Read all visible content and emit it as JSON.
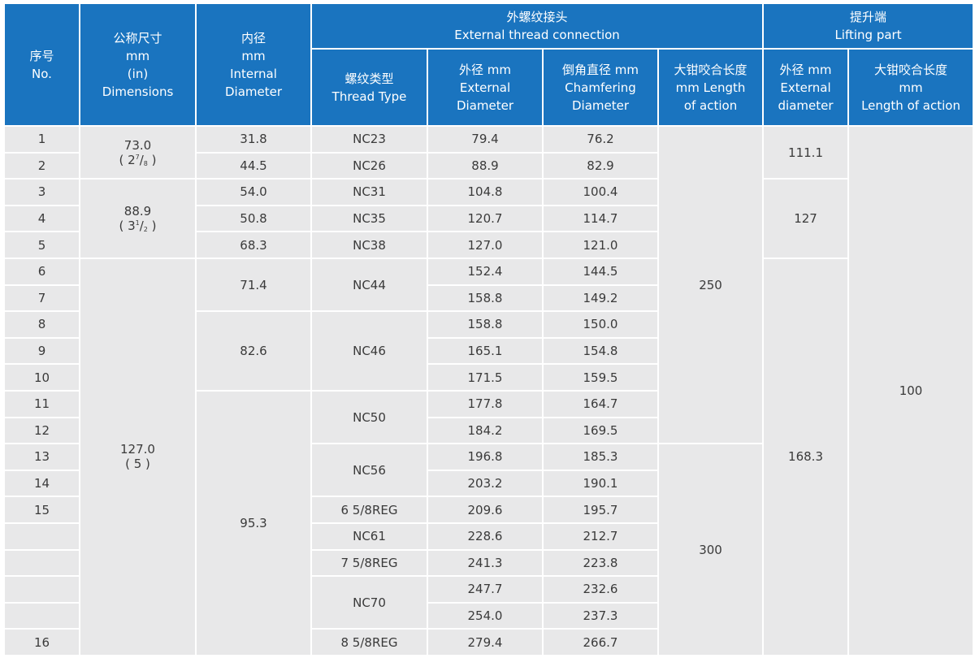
{
  "headers": {
    "no": [
      "序号",
      "No."
    ],
    "dimensions": [
      "公称尺寸",
      "mm",
      "(in)",
      "Dimensions"
    ],
    "internal": [
      "内径",
      "mm",
      "Internal",
      "Diameter"
    ],
    "ext_thread": [
      "外螺纹接头",
      "External thread connection"
    ],
    "lifting": [
      "提升端",
      "Lifting part"
    ],
    "thread_type": [
      "螺纹类型",
      "Thread Type"
    ],
    "ext_diameter": [
      "外径 mm",
      "External",
      "Diameter"
    ],
    "chamfer": [
      "倒角直径 mm",
      "Chamfering",
      "Diameter"
    ],
    "length_action": [
      "大钳咬合长度",
      "mm Length",
      "of action"
    ],
    "lift_ext_diameter": [
      "外径 mm",
      "External",
      "diameter"
    ],
    "lift_length": [
      "大钳咬合长度",
      "mm",
      "Length of action"
    ]
  },
  "rows": [
    {
      "no": "1",
      "ext": "79.4",
      "chamfer": "76.2"
    },
    {
      "no": "2",
      "ext": "88.9",
      "chamfer": "82.9"
    },
    {
      "no": "3",
      "ext": "104.8",
      "chamfer": "100.4"
    },
    {
      "no": "4",
      "ext": "120.7",
      "chamfer": "114.7"
    },
    {
      "no": "5",
      "ext": "127.0",
      "chamfer": "121.0"
    },
    {
      "no": "6",
      "ext": "152.4",
      "chamfer": "144.5"
    },
    {
      "no": "7",
      "ext": "158.8",
      "chamfer": "149.2"
    },
    {
      "no": "8",
      "ext": "158.8",
      "chamfer": "150.0"
    },
    {
      "no": "9",
      "ext": "165.1",
      "chamfer": "154.8"
    },
    {
      "no": "10",
      "ext": "171.5",
      "chamfer": "159.5"
    },
    {
      "no": "11",
      "ext": "177.8",
      "chamfer": "164.7"
    },
    {
      "no": "12",
      "ext": "184.2",
      "chamfer": "169.5"
    },
    {
      "no": "13",
      "ext": "196.8",
      "chamfer": "185.3"
    },
    {
      "no": "14",
      "ext": "203.2",
      "chamfer": "190.1"
    },
    {
      "no": "15",
      "ext": "209.6",
      "chamfer": "195.7"
    },
    {
      "no": "",
      "ext": "228.6",
      "chamfer": "212.7"
    },
    {
      "no": "",
      "ext": "241.3",
      "chamfer": "223.8"
    },
    {
      "no": "",
      "ext": "247.7",
      "chamfer": "232.6"
    },
    {
      "no": "",
      "ext": "254.0",
      "chamfer": "237.3"
    },
    {
      "no": "16",
      "ext": "279.4",
      "chamfer": "266.7"
    }
  ],
  "dimensions": [
    {
      "mm": "73.0",
      "in_pre": "( 2",
      "in_num": "7",
      "in_den": "8",
      "in_post": " )"
    },
    {
      "mm": "88.9",
      "in_pre": "( 3",
      "in_num": "1",
      "in_den": "2",
      "in_post": " )"
    },
    {
      "mm": "127.0",
      "in_text": "( 5 )"
    }
  ],
  "internal": [
    "31.8",
    "44.5",
    "54.0",
    "50.8",
    "68.3",
    "71.4",
    "82.6",
    "95.3"
  ],
  "threads": [
    "NC23",
    "NC26",
    "NC31",
    "NC35",
    "NC38",
    "NC44",
    "NC46",
    "NC50",
    "NC56",
    "6 5/8REG",
    "NC61",
    "7 5/8REG",
    "NC70",
    "8 5/8REG"
  ],
  "length_action": [
    "250",
    "300"
  ],
  "lift_diameter": [
    "111.1",
    "127",
    "168.3"
  ],
  "lift_length": "100"
}
